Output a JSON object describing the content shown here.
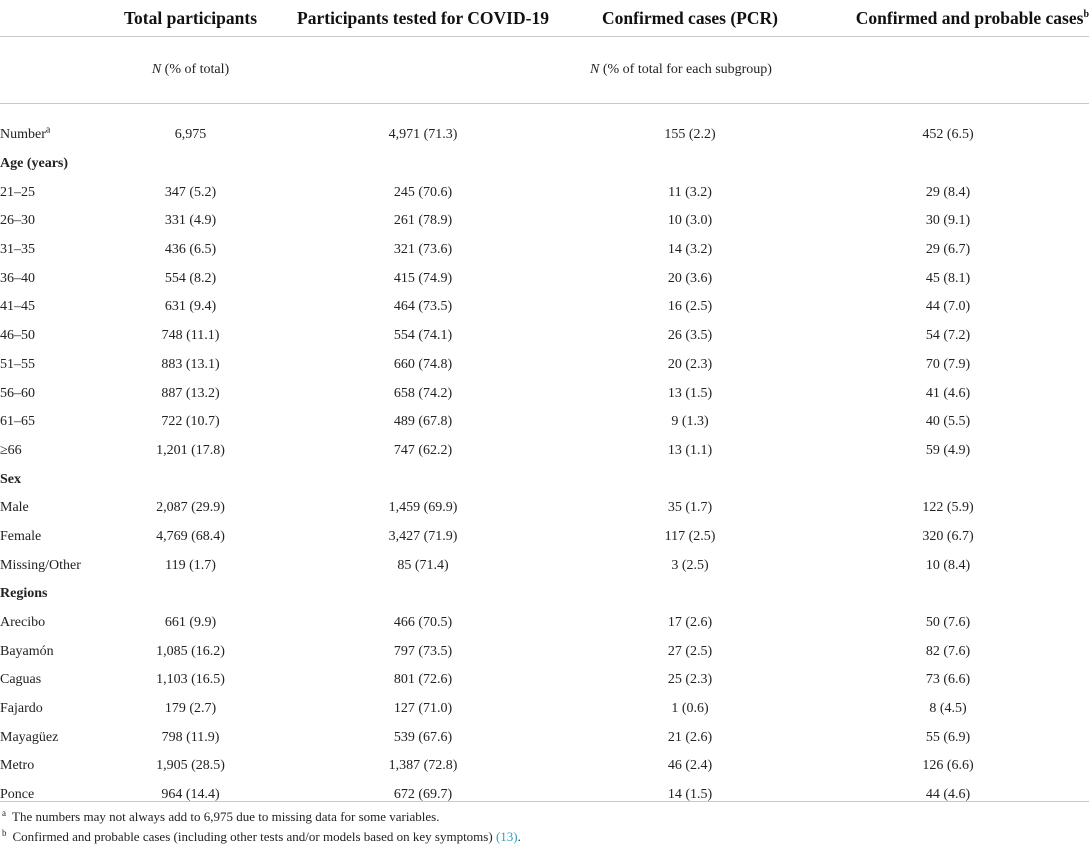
{
  "headers": {
    "total": "Total participants",
    "tested": "Participants tested for COVID-19",
    "confirmed": "Confirmed cases (PCR)",
    "probable": "Confirmed and probable cases",
    "probable_sup": "b"
  },
  "subheaders": {
    "n1": "N",
    "pct1": " (% of total)",
    "n2": "N",
    "pct2": " (% of total for each subgroup)"
  },
  "number_row": {
    "label": "Number",
    "sup": "a",
    "total": "6,975",
    "tested": "4,971 (71.3)",
    "confirmed": "155 (2.2)",
    "probable": "452 (6.5)"
  },
  "sections": {
    "age": "Age (years)",
    "sex": "Sex",
    "regions": "Regions"
  },
  "age_rows": [
    {
      "label": "21–25",
      "total": "347 (5.2)",
      "tested": "245 (70.6)",
      "confirmed": "11 (3.2)",
      "probable": "29 (8.4)"
    },
    {
      "label": "26–30",
      "total": "331 (4.9)",
      "tested": "261 (78.9)",
      "confirmed": "10 (3.0)",
      "probable": "30 (9.1)"
    },
    {
      "label": "31–35",
      "total": "436 (6.5)",
      "tested": "321 (73.6)",
      "confirmed": "14 (3.2)",
      "probable": "29 (6.7)"
    },
    {
      "label": "36–40",
      "total": "554 (8.2)",
      "tested": "415 (74.9)",
      "confirmed": "20 (3.6)",
      "probable": "45 (8.1)"
    },
    {
      "label": "41–45",
      "total": "631 (9.4)",
      "tested": "464 (73.5)",
      "confirmed": "16 (2.5)",
      "probable": "44 (7.0)"
    },
    {
      "label": "46–50",
      "total": "748 (11.1)",
      "tested": "554 (74.1)",
      "confirmed": "26 (3.5)",
      "probable": "54 (7.2)"
    },
    {
      "label": "51–55",
      "total": "883 (13.1)",
      "tested": "660 (74.8)",
      "confirmed": "20 (2.3)",
      "probable": "70 (7.9)"
    },
    {
      "label": "56–60",
      "total": "887 (13.2)",
      "tested": "658 (74.2)",
      "confirmed": "13 (1.5)",
      "probable": "41 (4.6)"
    },
    {
      "label": "61–65",
      "total": "722 (10.7)",
      "tested": "489 (67.8)",
      "confirmed": "9 (1.3)",
      "probable": "40 (5.5)"
    },
    {
      "label": "≥66",
      "total": "1,201 (17.8)",
      "tested": "747 (62.2)",
      "confirmed": "13 (1.1)",
      "probable": "59 (4.9)"
    }
  ],
  "sex_rows": [
    {
      "label": "Male",
      "total": "2,087 (29.9)",
      "tested": "1,459 (69.9)",
      "confirmed": "35 (1.7)",
      "probable": "122 (5.9)"
    },
    {
      "label": "Female",
      "total": "4,769 (68.4)",
      "tested": "3,427 (71.9)",
      "confirmed": "117 (2.5)",
      "probable": "320 (6.7)"
    },
    {
      "label": "Missing/Other",
      "total": "119 (1.7)",
      "tested": "85 (71.4)",
      "confirmed": "3 (2.5)",
      "probable": "10 (8.4)"
    }
  ],
  "region_rows": [
    {
      "label": "Arecibo",
      "total": "661 (9.9)",
      "tested": "466 (70.5)",
      "confirmed": "17 (2.6)",
      "probable": "50 (7.6)"
    },
    {
      "label": "Bayamón",
      "total": "1,085 (16.2)",
      "tested": "797 (73.5)",
      "confirmed": "27 (2.5)",
      "probable": "82 (7.6)"
    },
    {
      "label": "Caguas",
      "total": "1,103 (16.5)",
      "tested": "801 (72.6)",
      "confirmed": "25 (2.3)",
      "probable": "73 (6.6)"
    },
    {
      "label": "Fajardo",
      "total": "179 (2.7)",
      "tested": "127 (71.0)",
      "confirmed": "1 (0.6)",
      "probable": "8 (4.5)"
    },
    {
      "label": "Mayagüez",
      "total": "798 (11.9)",
      "tested": "539 (67.6)",
      "confirmed": "21 (2.6)",
      "probable": "55 (6.9)"
    },
    {
      "label": "Metro",
      "total": "1,905 (28.5)",
      "tested": "1,387 (72.8)",
      "confirmed": "46 (2.4)",
      "probable": "126 (6.6)"
    },
    {
      "label": "Ponce",
      "total": "964 (14.4)",
      "tested": "672 (69.7)",
      "confirmed": "14 (1.5)",
      "probable": "44 (4.6)"
    }
  ],
  "footnotes": {
    "a_mark": "a",
    "a_text": "The numbers may not always add to 6,975 due to missing data for some variables.",
    "b_mark": "b",
    "b_text": "Confirmed and probable cases (including other tests and/or models based on key symptoms) ",
    "b_ref": "(13)",
    "b_end": "."
  }
}
